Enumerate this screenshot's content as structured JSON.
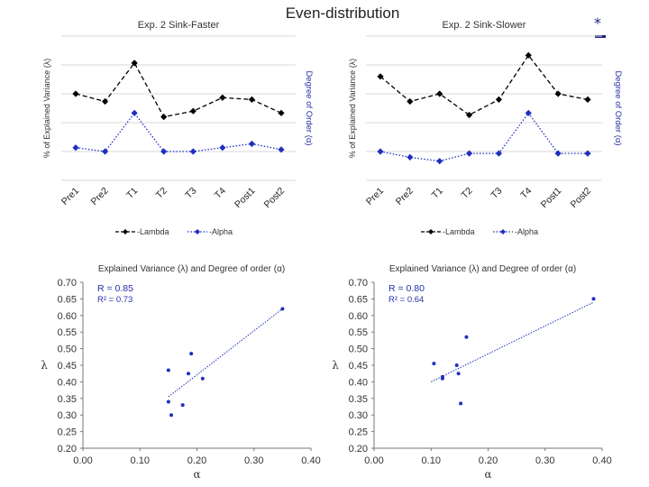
{
  "slide": {
    "title": "Even-distribution",
    "marker": "*"
  },
  "chart_data": [
    {
      "type": "line",
      "title": "Exp. 2 Sink-Faster",
      "ylabel_left": "% of Explained Variance (λ)",
      "ylabel_right": "Degree of Order (α)",
      "categories": [
        "Pre1",
        "Pre2",
        "T1",
        "T2",
        "T3",
        "T4",
        "Post1",
        "Post2"
      ],
      "series": [
        {
          "name": "Lambda",
          "color": "#000000",
          "marker": "diamond",
          "dash": "dashed",
          "values": [
            0.45,
            0.41,
            0.61,
            0.33,
            0.36,
            0.43,
            0.42,
            0.35
          ]
        },
        {
          "name": "Alpha",
          "color": "#1f2fbf",
          "marker": "diamond",
          "dash": "dotted",
          "values": [
            0.17,
            0.15,
            0.35,
            0.15,
            0.15,
            0.17,
            0.19,
            0.16
          ]
        }
      ],
      "ylim": [
        0,
        0.75
      ],
      "grid": true,
      "legend": "bottom"
    },
    {
      "type": "line",
      "title": "Exp. 2 Sink-Slower",
      "ylabel_left": "% of Explained Variance (λ)",
      "ylabel_right": "Degree of Order (α)",
      "categories": [
        "Pre1",
        "Pre2",
        "T1",
        "T2",
        "T3",
        "T4",
        "Post1",
        "Post2"
      ],
      "series": [
        {
          "name": "Lambda",
          "color": "#000000",
          "marker": "diamond",
          "dash": "dashed",
          "values": [
            0.54,
            0.41,
            0.45,
            0.34,
            0.42,
            0.65,
            0.45,
            0.42
          ]
        },
        {
          "name": "Alpha",
          "color": "#1f2fbf",
          "marker": "diamond",
          "dash": "dotted",
          "values": [
            0.15,
            0.12,
            0.1,
            0.14,
            0.14,
            0.35,
            0.14,
            0.14
          ]
        }
      ],
      "ylim": [
        0,
        0.75
      ],
      "grid": true,
      "legend": "bottom"
    },
    {
      "type": "scatter",
      "title": "Explained Variance (λ) and Degree of order (α)",
      "xlabel": "α",
      "ylabel": "λ",
      "xlim": [
        0.0,
        0.4
      ],
      "ylim": [
        0.2,
        0.7
      ],
      "xticks": [
        "0.00",
        "0.10",
        "0.20",
        "0.30",
        "0.40"
      ],
      "yticks": [
        "0.20",
        "0.25",
        "0.30",
        "0.35",
        "0.40",
        "0.45",
        "0.50",
        "0.55",
        "0.60",
        "0.65",
        "0.70"
      ],
      "stats": [
        "R = 0.85",
        "R² = 0.73"
      ],
      "points": [
        [
          0.15,
          0.435
        ],
        [
          0.15,
          0.34
        ],
        [
          0.155,
          0.3
        ],
        [
          0.175,
          0.33
        ],
        [
          0.185,
          0.425
        ],
        [
          0.19,
          0.485
        ],
        [
          0.21,
          0.41
        ],
        [
          0.35,
          0.62
        ]
      ],
      "trendline": {
        "x1": 0.15,
        "y1": 0.355,
        "x2": 0.35,
        "y2": 0.62
      },
      "color": "#1f2fbf",
      "grid": false
    },
    {
      "type": "scatter",
      "title": "Explained Variance (λ) and Degree of order (α)",
      "xlabel": "α",
      "ylabel": "λ",
      "xlim": [
        0.0,
        0.4
      ],
      "ylim": [
        0.2,
        0.7
      ],
      "xticks": [
        "0.00",
        "0.10",
        "0.20",
        "0.30",
        "0.40"
      ],
      "yticks": [
        "0.20",
        "0.25",
        "0.30",
        "0.35",
        "0.40",
        "0.45",
        "0.50",
        "0.55",
        "0.60",
        "0.65",
        "0.70"
      ],
      "stats": [
        "R = 0.80",
        "R² = 0.64"
      ],
      "points": [
        [
          0.105,
          0.455
        ],
        [
          0.12,
          0.415
        ],
        [
          0.12,
          0.41
        ],
        [
          0.145,
          0.45
        ],
        [
          0.148,
          0.425
        ],
        [
          0.152,
          0.335
        ],
        [
          0.162,
          0.535
        ],
        [
          0.385,
          0.65
        ]
      ],
      "trendline": {
        "x1": 0.1,
        "y1": 0.4,
        "x2": 0.385,
        "y2": 0.64
      },
      "color": "#1f2fbf",
      "grid": false
    }
  ]
}
